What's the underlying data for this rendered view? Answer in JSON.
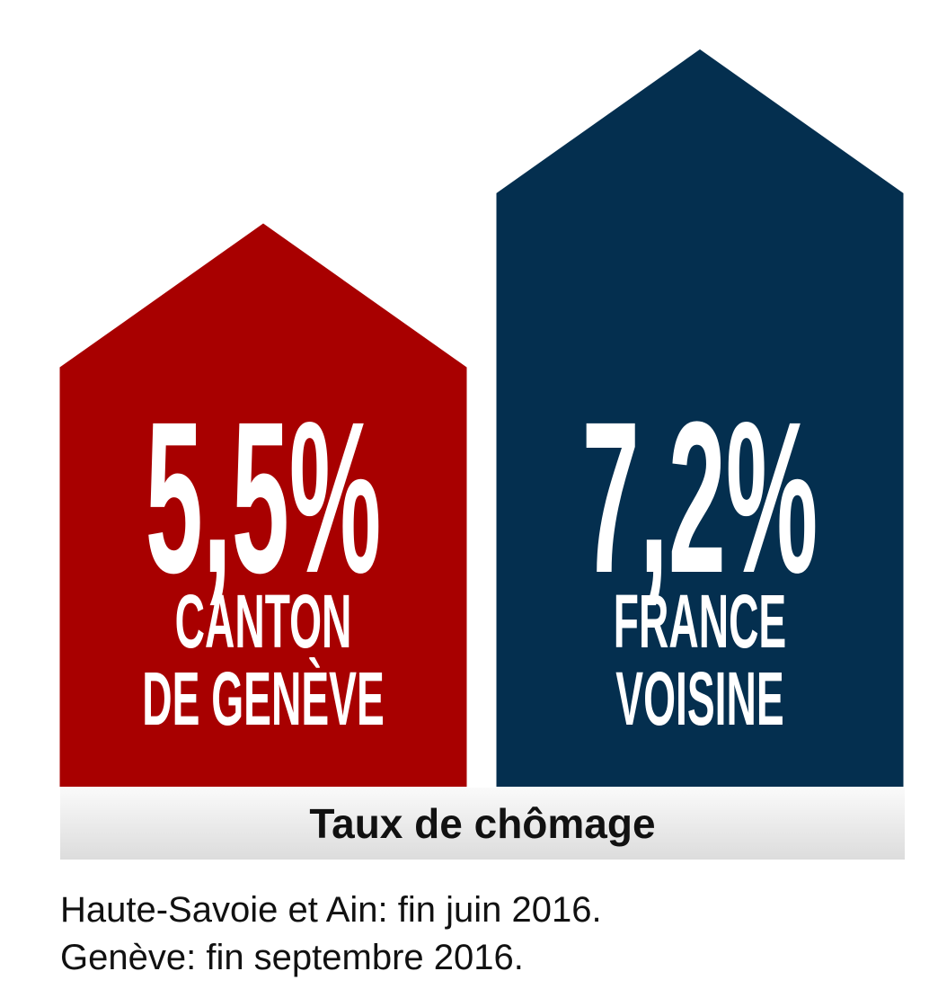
{
  "chart_data": {
    "type": "bar",
    "title": "Taux de chômage",
    "categories": [
      "CANTON\nDE GENÈVE",
      "FRANCE\nVOISINE"
    ],
    "values": [
      5.5,
      7.2
    ],
    "value_labels": [
      "5,5%",
      "7,2%"
    ],
    "colors": [
      "#a80000",
      "#042f4f"
    ],
    "notes": [
      "Haute-Savoie et Ain: fin juin 2016.",
      "Genève: fin septembre 2016."
    ]
  }
}
